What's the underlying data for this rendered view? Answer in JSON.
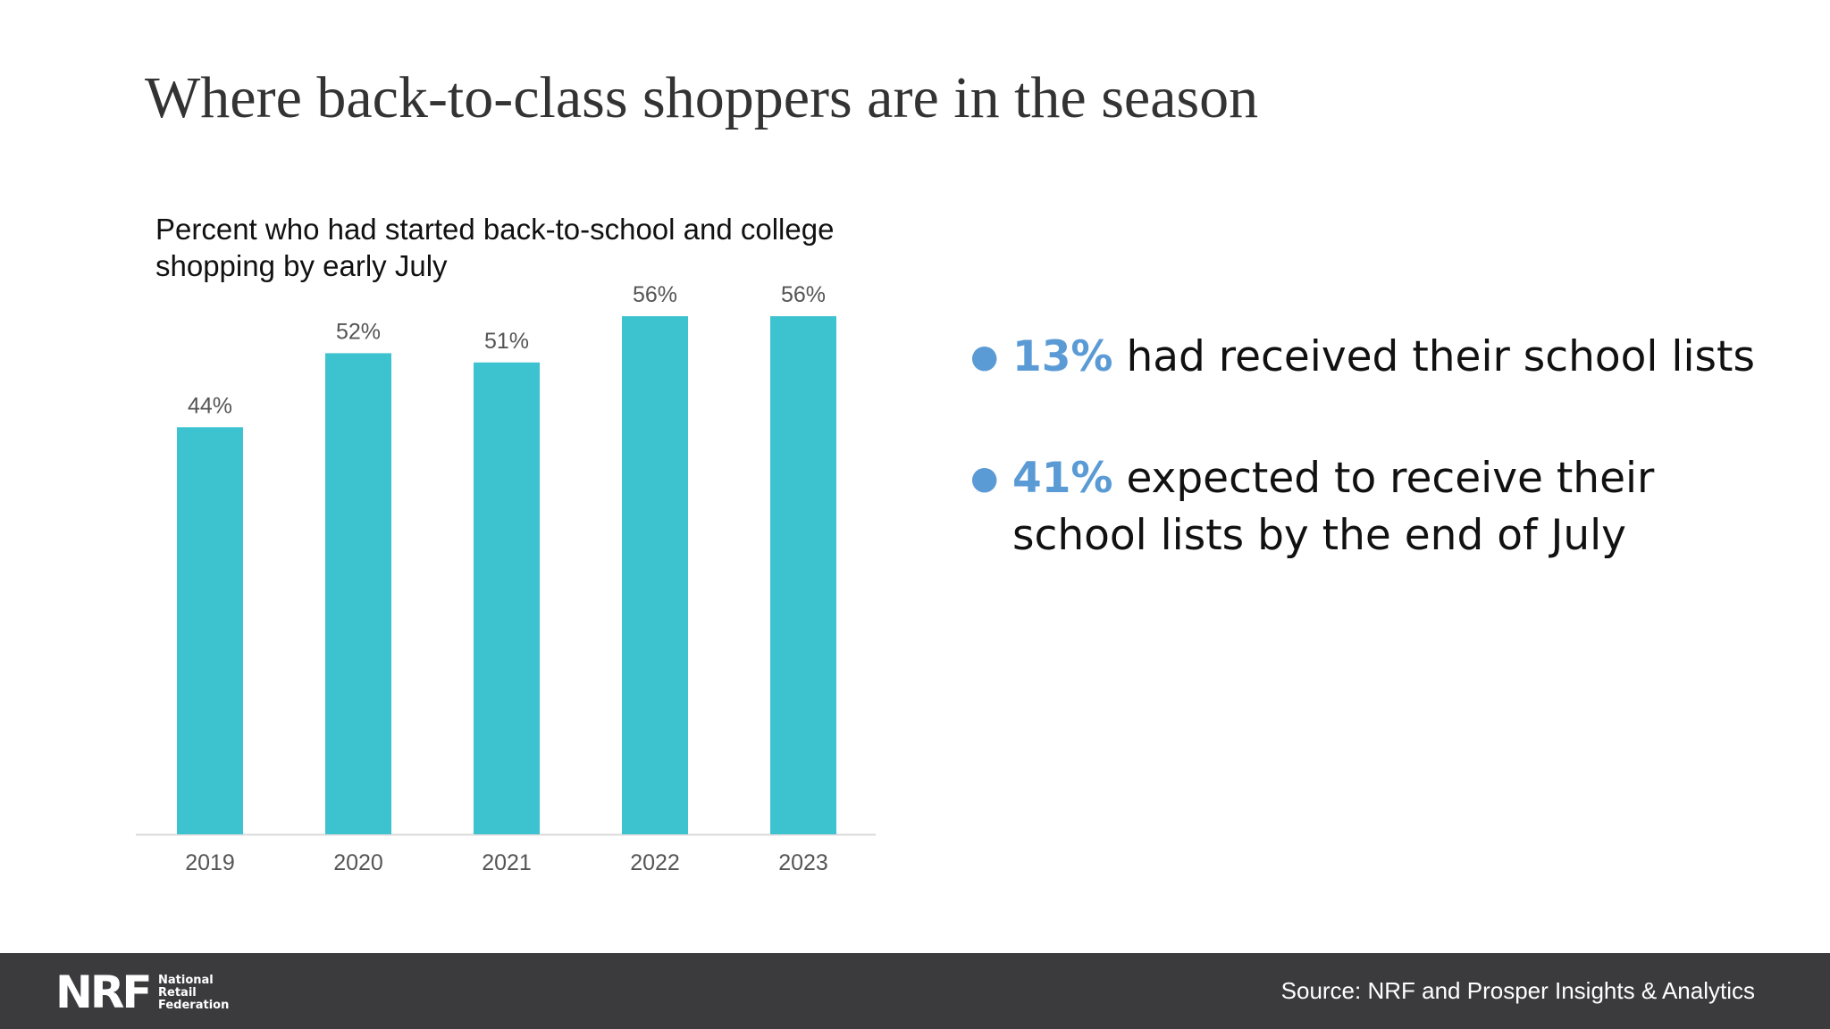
{
  "slide": {
    "title": "Where back-to-class shoppers are in the season"
  },
  "bullets": [
    {
      "highlight": "13%",
      "text": " had received their school lists"
    },
    {
      "highlight": "41%",
      "text": " expected to receive their school lists by the end of July"
    }
  ],
  "footer": {
    "logo_mark": "NRF",
    "logo_line1": "National",
    "logo_line2": "Retail",
    "logo_line3": "Federation",
    "source": "Source: NRF and Prosper Insights & Analytics"
  },
  "colors": {
    "bar": "#3dc2d0",
    "highlight": "#5b9bd5",
    "footer_bg": "#3b3a3d"
  },
  "chart_data": {
    "type": "bar",
    "title": "Percent who had started back-to-school and college shopping by early July",
    "categories": [
      "2019",
      "2020",
      "2021",
      "2022",
      "2023"
    ],
    "values": [
      44,
      52,
      51,
      56,
      56
    ],
    "value_labels": [
      "44%",
      "52%",
      "51%",
      "56%",
      "56%"
    ],
    "xlabel": "",
    "ylabel": "",
    "ylim": [
      0,
      56
    ],
    "grid": false,
    "legend": "none"
  }
}
